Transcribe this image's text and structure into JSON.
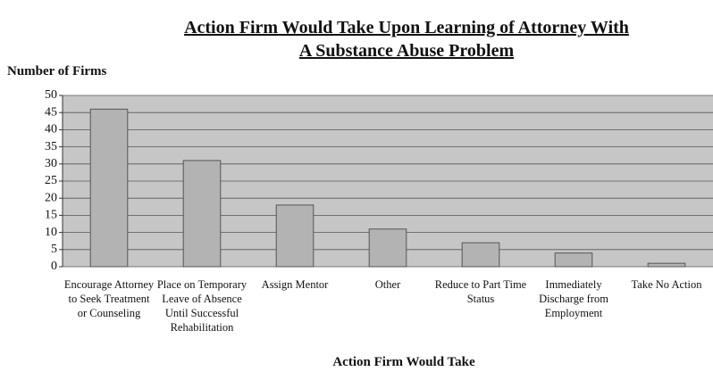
{
  "chart_data": {
    "type": "bar",
    "title": [
      "Action Firm Would Take Upon Learning of Attorney With",
      "A Substance Abuse Problem"
    ],
    "y_label": "Number of Firms",
    "x_label": "Action Firm Would Take",
    "categories": [
      "Encourage Attorney to Seek Treatment or Counseling",
      "Place on Temporary Leave of Absence Until Successful Rehabilitation",
      "Assign Mentor",
      "Other",
      "Reduce to Part Time Status",
      "Immediately Discharge from Employment",
      "Take No Action"
    ],
    "values": [
      46,
      31,
      18,
      11,
      7,
      4,
      1
    ],
    "color": "#b3b3b3",
    "ylim": [
      0,
      50
    ],
    "yticks": [
      0,
      5,
      10,
      15,
      20,
      25,
      30,
      35,
      40,
      45,
      50
    ],
    "grid": true
  }
}
